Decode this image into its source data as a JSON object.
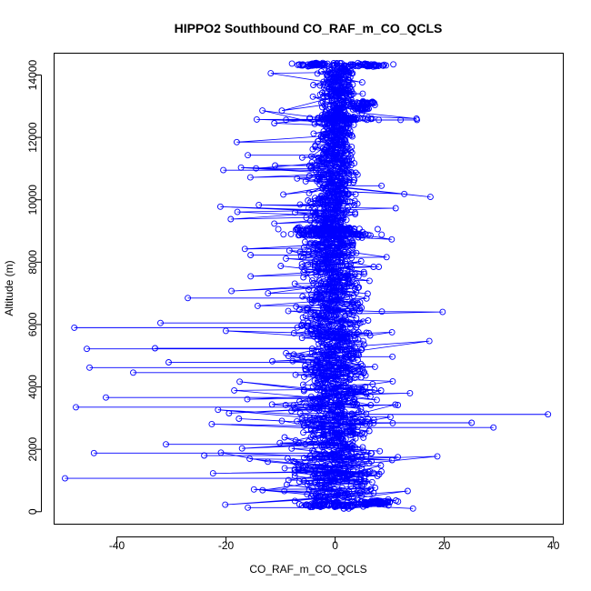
{
  "chart_data": {
    "type": "scatter",
    "title": "HIPPO2 Southbound CO_RAF_m_CO_QCLS",
    "xlabel": "CO_RAF_m_CO_QCLS",
    "ylabel": "Altitude (m)",
    "xlim": [
      -51.5,
      41.8
    ],
    "ylim": [
      -400,
      14700
    ],
    "x_ticks": [
      -40,
      -20,
      0,
      20,
      40
    ],
    "y_ticks": [
      0,
      2000,
      4000,
      6000,
      8000,
      10000,
      12000,
      14000
    ],
    "x_tick_labels": [
      "-40",
      "-20",
      "0",
      "20",
      "40"
    ],
    "y_tick_labels": [
      "0",
      "2000",
      "4000",
      "6000",
      "8000",
      "10000",
      "12000",
      "14000"
    ],
    "grid": false,
    "marker": "open-circle",
    "connected": true,
    "series_color": "#0000ff",
    "notable_points": [
      {
        "x": -49.5,
        "y": 1070
      },
      {
        "x": -47.5,
        "y": 3350
      },
      {
        "x": -47.8,
        "y": 5900
      },
      {
        "x": -45.5,
        "y": 5220
      },
      {
        "x": -45.0,
        "y": 4620
      },
      {
        "x": -44.2,
        "y": 1880
      },
      {
        "x": -42.0,
        "y": 3660
      },
      {
        "x": -37.0,
        "y": 4460
      },
      {
        "x": -33.0,
        "y": 5240
      },
      {
        "x": -32.0,
        "y": 6050
      },
      {
        "x": -31.0,
        "y": 2160
      },
      {
        "x": -30.5,
        "y": 4790
      },
      {
        "x": -27.0,
        "y": 6850
      },
      {
        "x": -24.0,
        "y": 1800
      },
      {
        "x": -20.5,
        "y": 10950
      },
      {
        "x": -16.0,
        "y": 11430
      },
      {
        "x": -15.5,
        "y": 8230
      },
      {
        "x": -16.0,
        "y": 130
      },
      {
        "x": -11.0,
        "y": 11100
      },
      {
        "x": -9.0,
        "y": 12560
      },
      {
        "x": -7.0,
        "y": 9070
      },
      {
        "x": -4.0,
        "y": 14330
      },
      {
        "x": 5.0,
        "y": 14330
      },
      {
        "x": 9.0,
        "y": 14330
      },
      {
        "x": 4.5,
        "y": 13100
      },
      {
        "x": 8.0,
        "y": 12560
      },
      {
        "x": 15.0,
        "y": 12560
      },
      {
        "x": 12.0,
        "y": 12560
      },
      {
        "x": 8.5,
        "y": 10450
      },
      {
        "x": 8.0,
        "y": 7850
      },
      {
        "x": 10.5,
        "y": 4970
      },
      {
        "x": 11.5,
        "y": 3420
      },
      {
        "x": 11.5,
        "y": 1750
      },
      {
        "x": 10.0,
        "y": 300
      },
      {
        "x": 25.0,
        "y": 2850
      },
      {
        "x": 29.0,
        "y": 2700
      },
      {
        "x": 39.0,
        "y": 3120
      }
    ]
  }
}
